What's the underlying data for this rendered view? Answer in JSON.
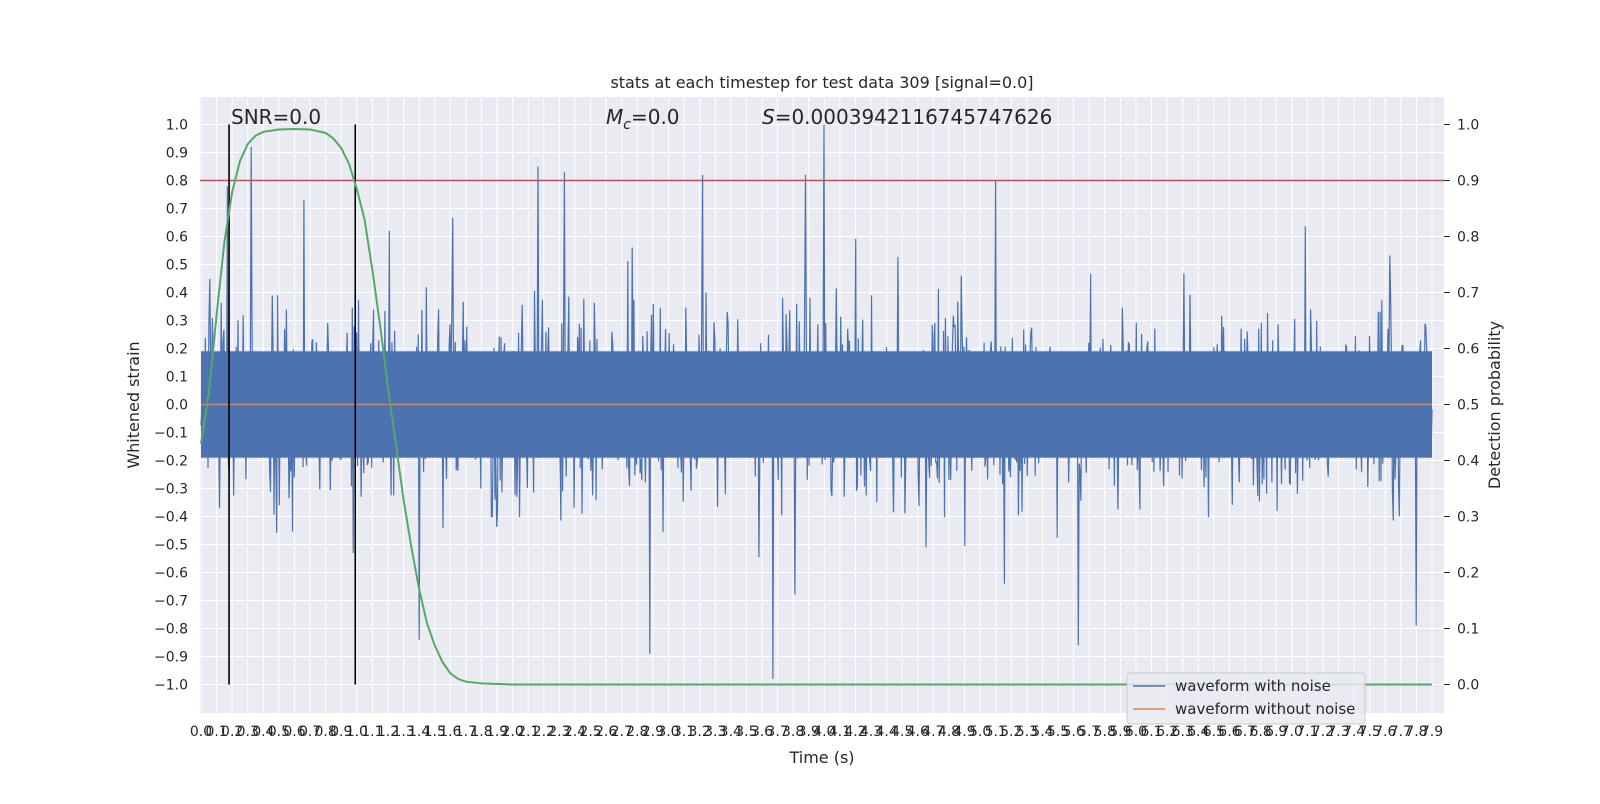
{
  "chart_data": {
    "type": "line",
    "title": "stats at each timestep for test data 309 [signal=0.0]",
    "xlabel": "Time (s)",
    "ylabel": "Whitened strain",
    "ylabel_right": "Detection probability",
    "xlim": [
      0.0,
      7.9
    ],
    "ylim_left": [
      -1.08,
      1.1
    ],
    "ylim_right": [
      -0.09,
      1.04
    ],
    "x_ticks": [
      "0.0",
      "0.1",
      "0.2",
      "0.3",
      "0.4",
      "0.5",
      "0.6",
      "0.7",
      "0.8",
      "0.9",
      "1.0",
      "1.1",
      "1.2",
      "1.3",
      "1.4",
      "1.5",
      "1.6",
      "1.7",
      "1.8",
      "1.9",
      "2.0",
      "2.1",
      "2.2",
      "2.3",
      "2.4",
      "2.5",
      "2.6",
      "2.7",
      "2.8",
      "2.9",
      "3.0",
      "3.1",
      "3.2",
      "3.3",
      "3.4",
      "3.5",
      "3.6",
      "3.7",
      "3.8",
      "3.9",
      "4.0",
      "4.1",
      "4.2",
      "4.3",
      "4.4",
      "4.5",
      "4.6",
      "4.7",
      "4.8",
      "4.9",
      "5.0",
      "5.1",
      "5.2",
      "5.3",
      "5.4",
      "5.5",
      "5.6",
      "5.7",
      "5.8",
      "5.9",
      "6.0",
      "6.1",
      "6.2",
      "6.3",
      "6.4",
      "6.5",
      "6.6",
      "6.7",
      "6.8",
      "6.9",
      "7.0",
      "7.1",
      "7.2",
      "7.3",
      "7.4",
      "7.5",
      "7.6",
      "7.7",
      "7.8",
      "7.9"
    ],
    "y_ticks_left": [
      "1.0",
      "0.9",
      "0.8",
      "0.7",
      "0.6",
      "0.5",
      "0.4",
      "0.3",
      "0.2",
      "0.1",
      "0.0",
      "−0.1",
      "−0.2",
      "−0.3",
      "−0.4",
      "−0.5",
      "−0.6",
      "−0.7",
      "−0.8",
      "−0.9",
      "−1.0"
    ],
    "y_ticks_right": [
      "1.0",
      "0.9",
      "0.8",
      "0.7",
      "0.6",
      "0.5",
      "0.4",
      "0.3",
      "0.2",
      "0.1",
      "0.0"
    ],
    "annotations": {
      "snr": "SNR=0.0",
      "mc_symbol": "M",
      "mc_sub": "c",
      "mc_value": "=0.0",
      "s_symbol": "S",
      "s_value": "=0.0003942116745747626"
    },
    "threshold": {
      "axis": "right",
      "value": 0.9,
      "color": "#c44e52"
    },
    "vlines": [
      0.18,
      0.99
    ],
    "series": [
      {
        "name": "waveform with noise",
        "axis": "left",
        "color": "#4c72b0",
        "style": "dense noise, typical envelope ±0.5, peaks near ±0.8",
        "peaks": [
          {
            "x": 0.17,
            "y": 0.78
          },
          {
            "x": 0.32,
            "y": 0.92
          },
          {
            "x": 0.66,
            "y": 0.73
          },
          {
            "x": 2.16,
            "y": 0.85
          },
          {
            "x": 2.33,
            "y": 0.83
          },
          {
            "x": 3.22,
            "y": 0.82
          },
          {
            "x": 4.0,
            "y": 1.0
          },
          {
            "x": 3.88,
            "y": 0.82
          },
          {
            "x": 5.1,
            "y": 0.8
          },
          {
            "x": 3.67,
            "y": -0.98
          },
          {
            "x": 2.88,
            "y": -0.89
          },
          {
            "x": 1.4,
            "y": -0.84
          },
          {
            "x": 5.63,
            "y": -0.86
          },
          {
            "x": 7.8,
            "y": -0.79
          }
        ]
      },
      {
        "name": "waveform without noise",
        "axis": "left",
        "color": "#dd8452",
        "points": [
          [
            0.0,
            0.0
          ],
          [
            7.9,
            0.0
          ]
        ]
      },
      {
        "name": "",
        "axis": "right",
        "color": "#55a868",
        "points": [
          [
            0.0,
            0.43
          ],
          [
            0.05,
            0.52
          ],
          [
            0.1,
            0.66
          ],
          [
            0.15,
            0.79
          ],
          [
            0.2,
            0.88
          ],
          [
            0.25,
            0.935
          ],
          [
            0.3,
            0.965
          ],
          [
            0.35,
            0.98
          ],
          [
            0.4,
            0.987
          ],
          [
            0.5,
            0.991
          ],
          [
            0.6,
            0.992
          ],
          [
            0.7,
            0.991
          ],
          [
            0.8,
            0.985
          ],
          [
            0.85,
            0.975
          ],
          [
            0.9,
            0.958
          ],
          [
            0.95,
            0.93
          ],
          [
            1.0,
            0.885
          ],
          [
            1.05,
            0.83
          ],
          [
            1.1,
            0.74
          ],
          [
            1.15,
            0.64
          ],
          [
            1.2,
            0.53
          ],
          [
            1.25,
            0.43
          ],
          [
            1.3,
            0.33
          ],
          [
            1.35,
            0.245
          ],
          [
            1.4,
            0.17
          ],
          [
            1.45,
            0.11
          ],
          [
            1.5,
            0.07
          ],
          [
            1.55,
            0.04
          ],
          [
            1.6,
            0.02
          ],
          [
            1.65,
            0.01
          ],
          [
            1.7,
            0.005
          ],
          [
            1.8,
            0.002
          ],
          [
            2.0,
            0.0
          ],
          [
            7.9,
            0.0
          ]
        ]
      }
    ],
    "legend": {
      "placement": "lower-right",
      "entries": [
        "waveform with noise",
        "waveform without noise"
      ]
    },
    "colors": {
      "axes_bg": "#eaeaf2",
      "grid": "#ffffff",
      "noise": "#4c72b0",
      "clean": "#dd8452",
      "probability": "#55a868",
      "threshold": "#c44e52"
    },
    "grid": true
  }
}
